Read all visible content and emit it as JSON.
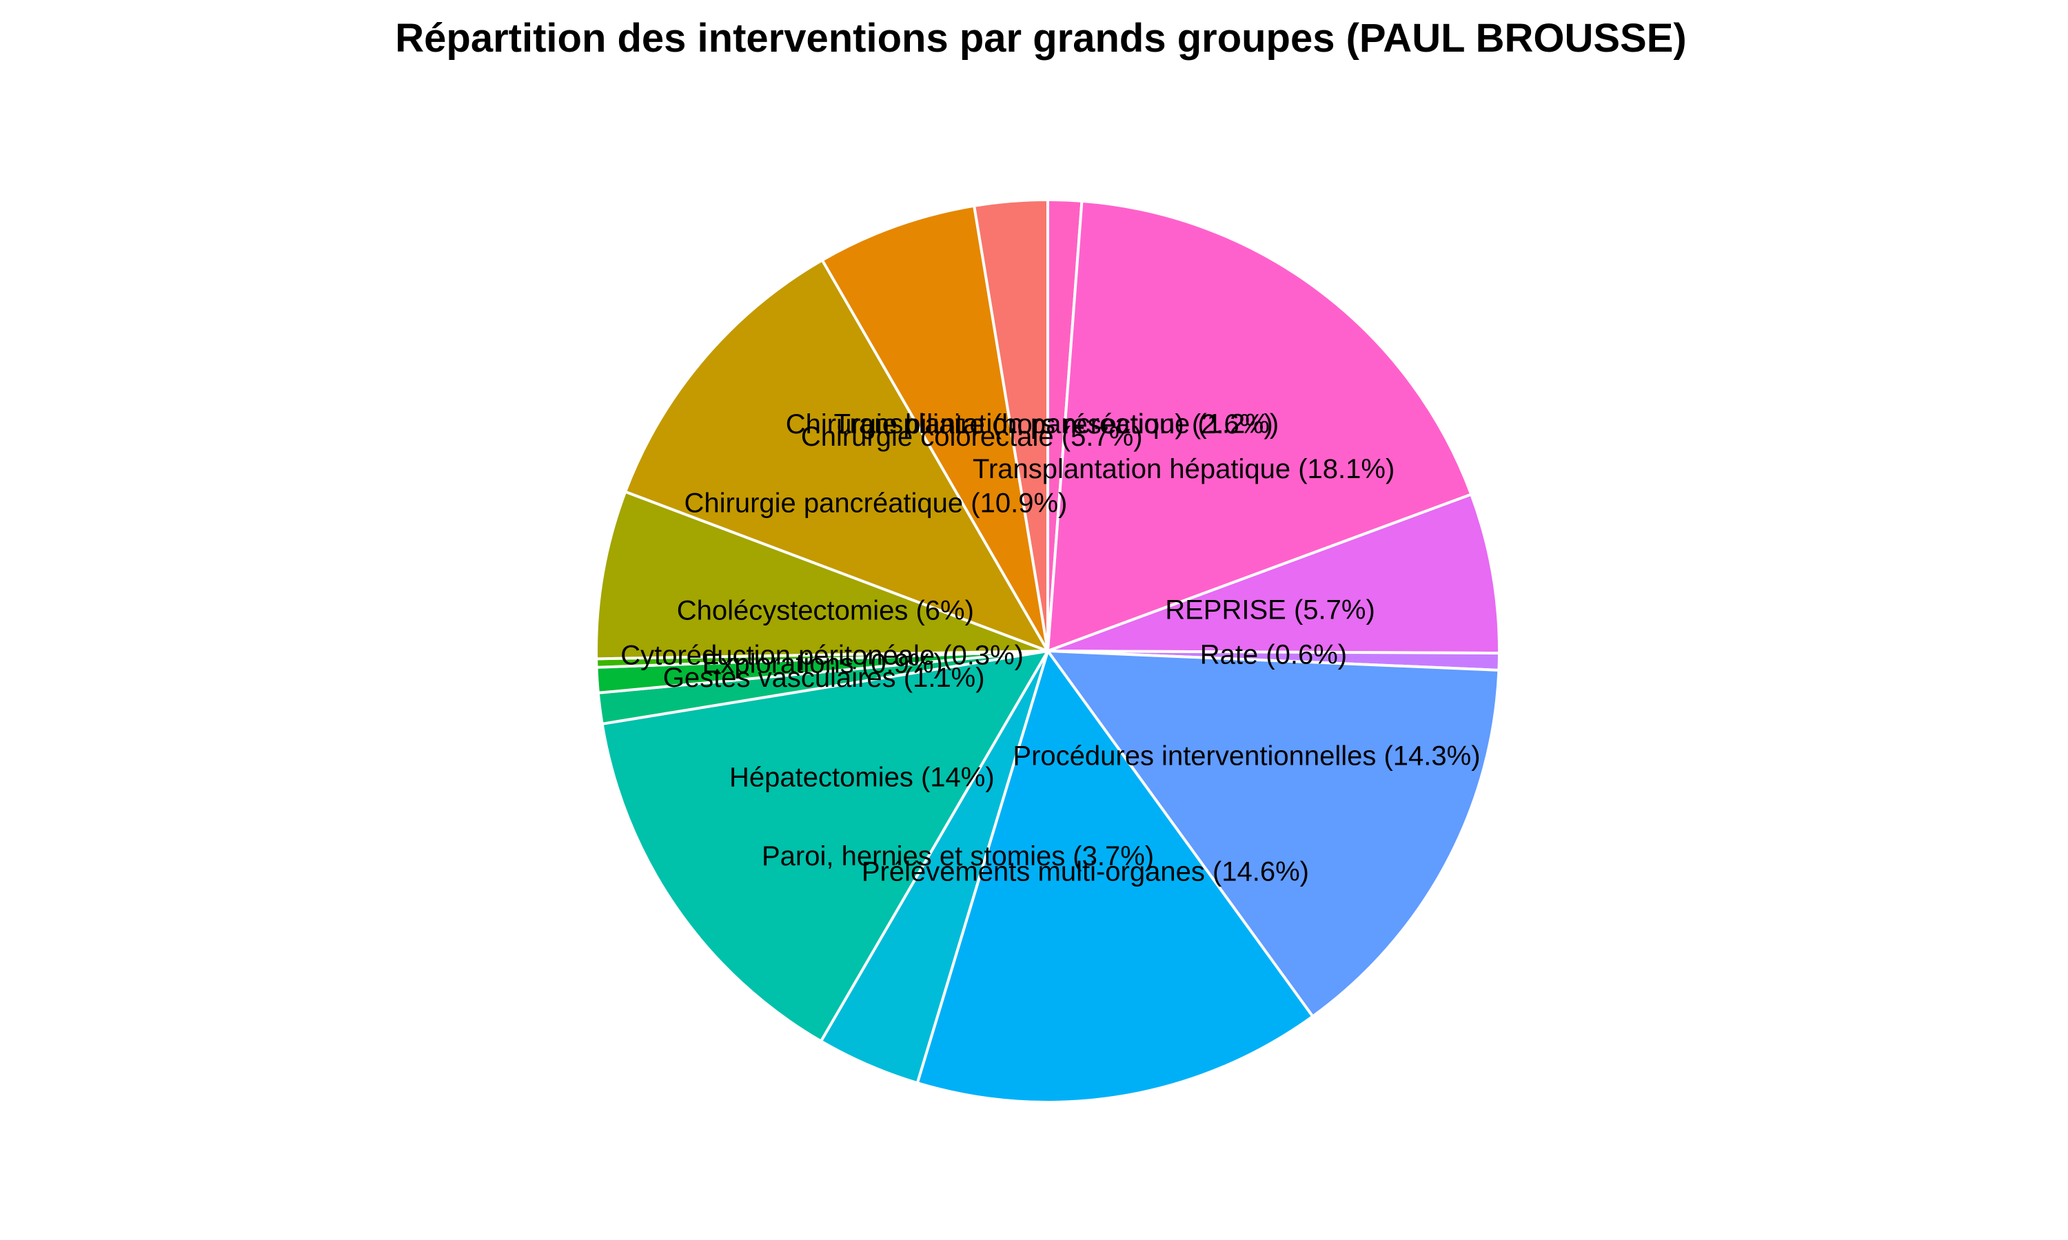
{
  "chart_data": {
    "type": "pie",
    "title": "Répartition des interventions par grands groupes (PAUL BROUSSE)",
    "slices": [
      {
        "label": "Transplantation pancréatique  (1.2%)",
        "value": 1.2,
        "color": "#FF61C3"
      },
      {
        "label": "Transplantation hépatique  (18.1%)",
        "value": 18.1,
        "color": "#FF61CC"
      },
      {
        "label": "REPRISE (5.7%)",
        "value": 5.7,
        "color": "#E76BF3"
      },
      {
        "label": "Rate (0.6%)",
        "value": 0.6,
        "color": "#C77CFF"
      },
      {
        "label": "Procédures interventionnelles (14.3%)",
        "value": 14.3,
        "color": "#619CFF"
      },
      {
        "label": "Prélèvements multi-organes (14.6%)",
        "value": 14.6,
        "color": "#00B0F6"
      },
      {
        "label": "Paroi, hernies et stomies (3.7%)",
        "value": 3.7,
        "color": "#00BCD8"
      },
      {
        "label": "Hépatectomies (14%)",
        "value": 14.0,
        "color": "#00C1AA"
      },
      {
        "label": "Gestes vasculaires (1.1%)",
        "value": 1.1,
        "color": "#00BF7D"
      },
      {
        "label": "Explorations (0.9%)",
        "value": 0.9,
        "color": "#00BA38"
      },
      {
        "label": "Cytoréduction péritonéale (0.3%)",
        "value": 0.3,
        "color": "#39B600"
      },
      {
        "label": "Cholécystectomies (6%)",
        "value": 6.0,
        "color": "#A3A500"
      },
      {
        "label": "Chirurgie pancréatique (10.9%)",
        "value": 10.9,
        "color": "#C49A00"
      },
      {
        "label": "Chirurgie colorectale (5.7%)",
        "value": 5.7,
        "color": "#E58700"
      },
      {
        "label": "Chirurgie biliaire (hors résection) (2.6%)",
        "value": 2.6,
        "color": "#F8766D"
      }
    ],
    "start_angle_deg": 0,
    "direction": "clockwise",
    "legend": "none"
  }
}
